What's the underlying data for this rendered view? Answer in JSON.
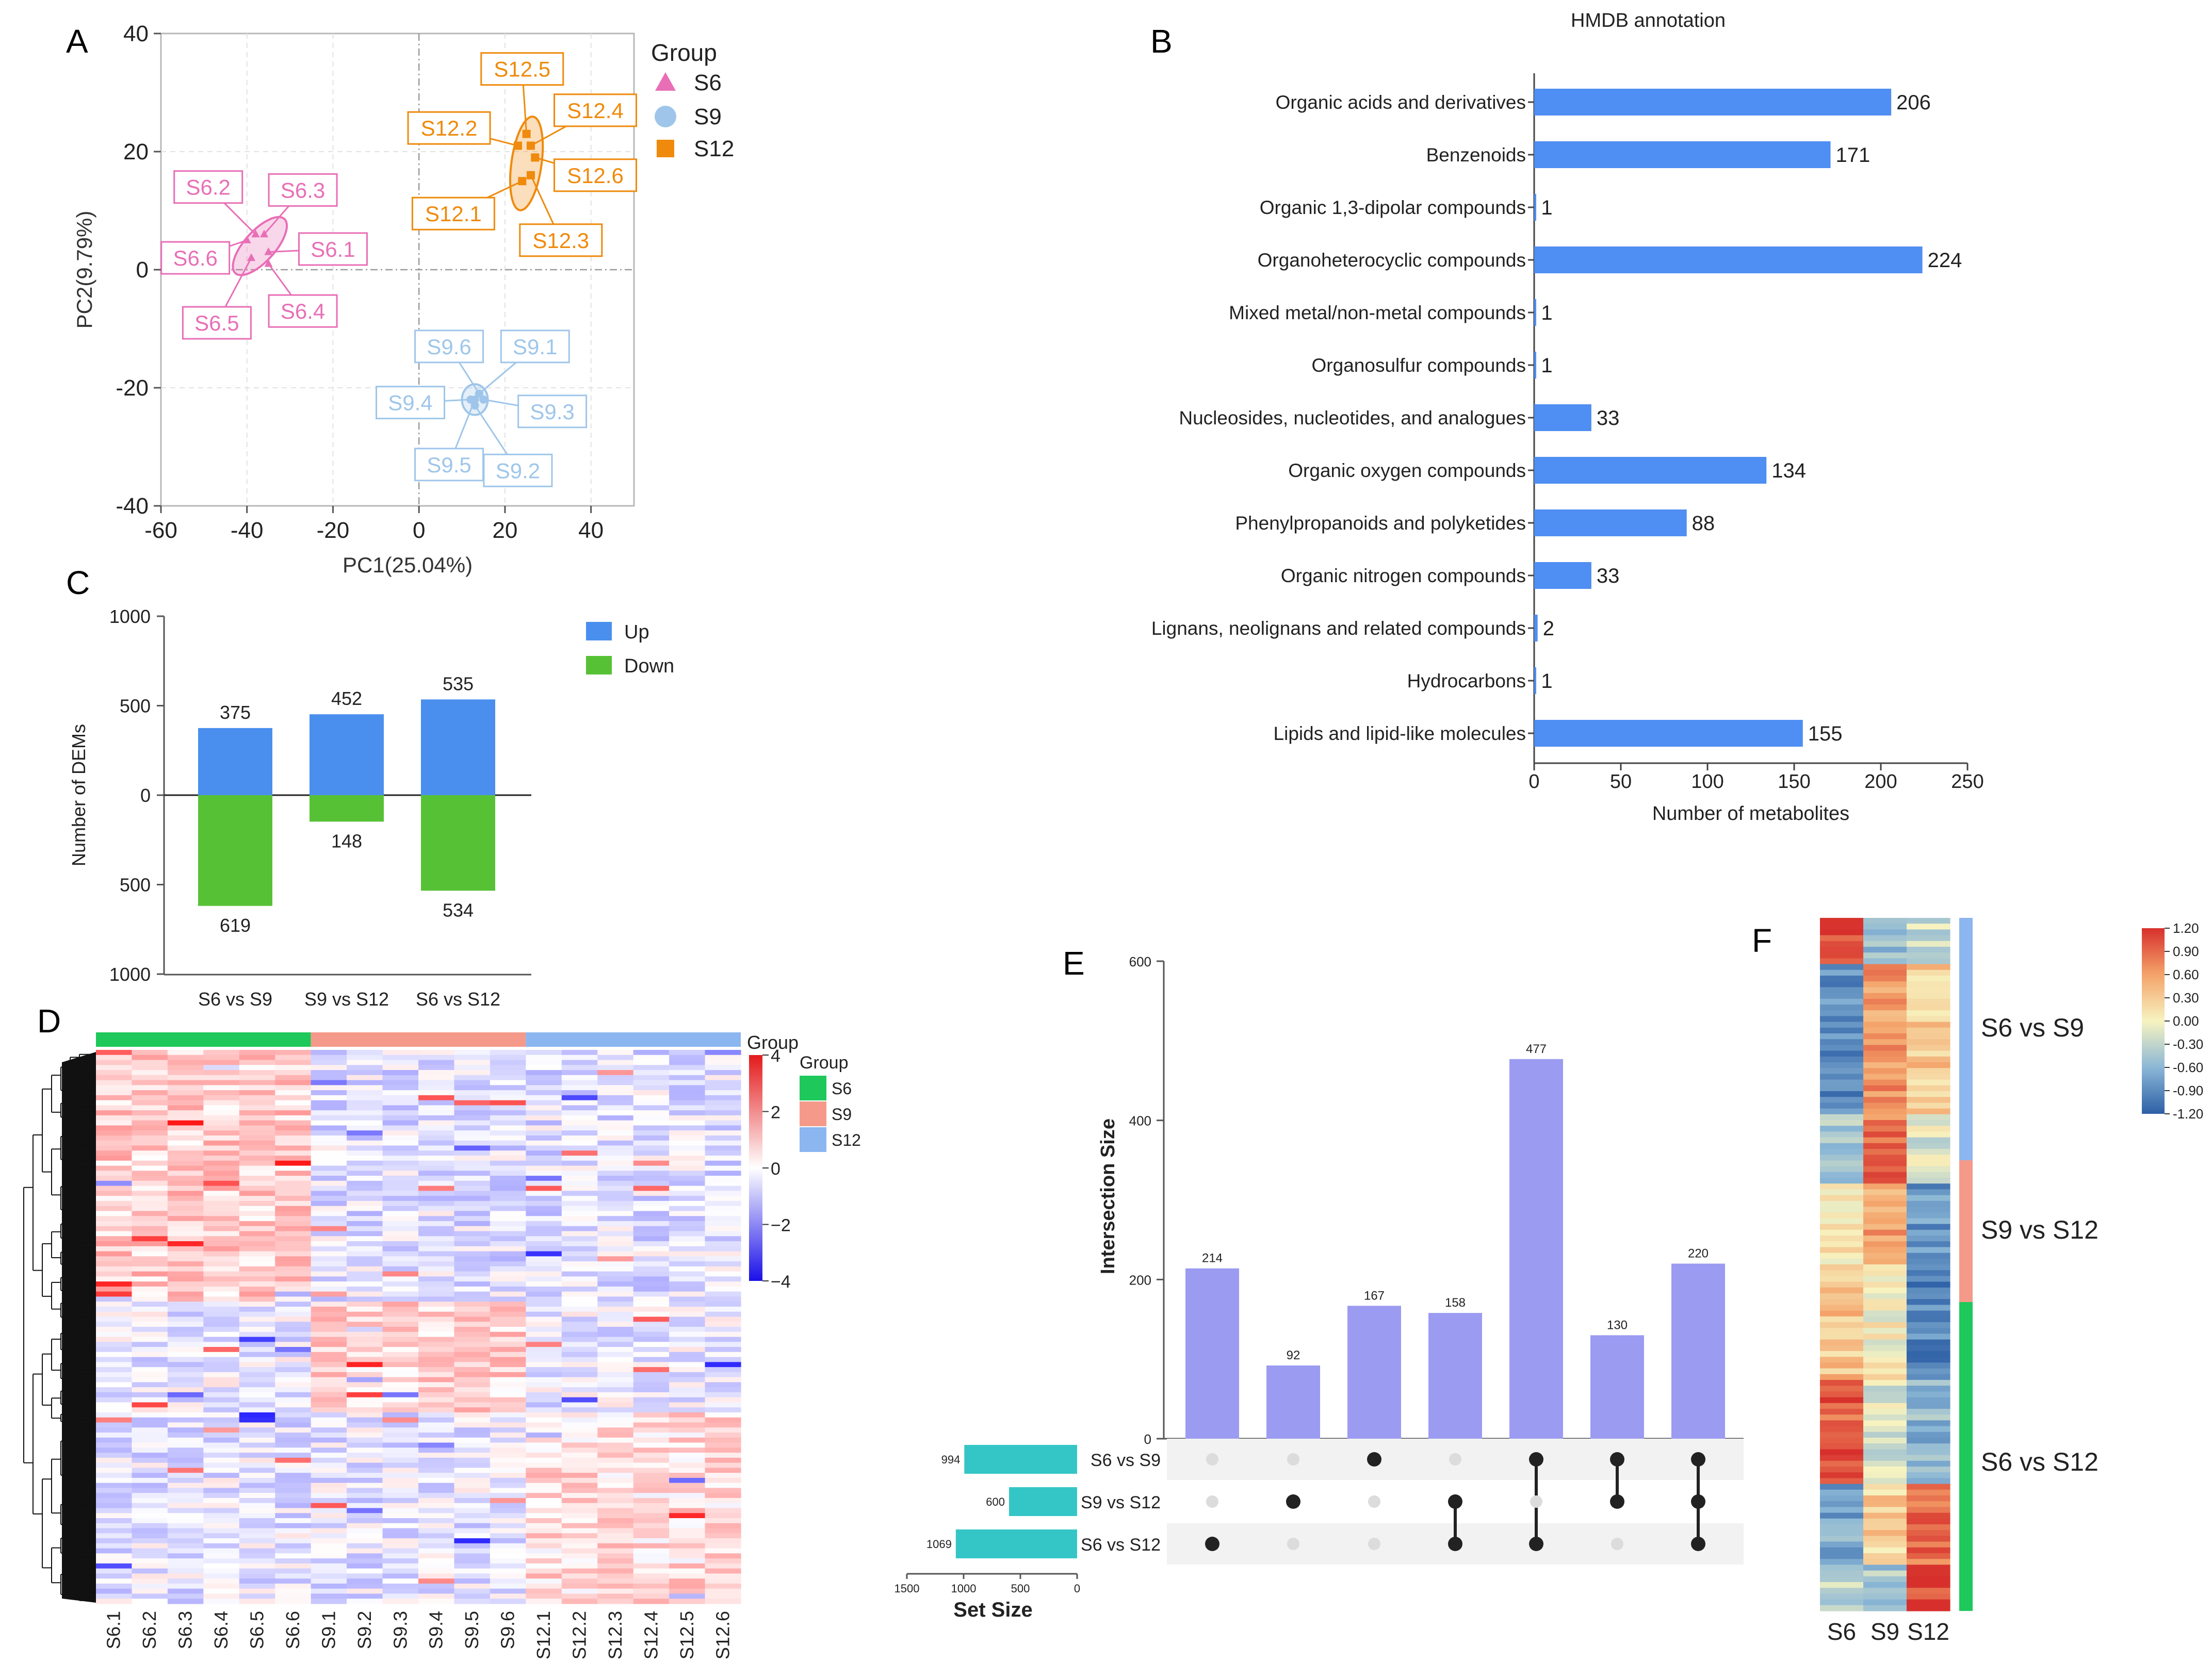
{
  "panels": {
    "A": "A",
    "B": "B",
    "C": "C",
    "D": "D",
    "E": "E",
    "F": "F"
  },
  "colors": {
    "s6": "#e86fb6",
    "s9": "#9fc6ea",
    "s12": "#ef8a0c",
    "bar_blue": "#4f8ef2",
    "up": "#4a8fee",
    "down": "#57c136",
    "upset_bar": "#9b9bf2",
    "set_bar": "#34c6c6",
    "heat_s6": "#1ec85a",
    "heat_s9": "#f59a8a",
    "heat_s12": "#8bb6f0"
  },
  "chart_data": [
    {
      "panel": "A",
      "type": "scatter",
      "title": "",
      "xlabel": "PC1(25.04%)",
      "ylabel": "PC2(9.79%)",
      "xlim": [
        -60,
        50
      ],
      "ylim": [
        -40,
        40
      ],
      "xticks": [
        -60,
        -40,
        -20,
        0,
        20,
        40
      ],
      "yticks": [
        40,
        20,
        0,
        -20,
        -40
      ],
      "legend_title": "Group",
      "legend": [
        {
          "name": "S6",
          "marker": "triangle",
          "color": "#e86fb6"
        },
        {
          "name": "S9",
          "marker": "circle",
          "color": "#9fc6ea"
        },
        {
          "name": "S12",
          "marker": "square",
          "color": "#ef8a0c"
        }
      ],
      "series": [
        {
          "name": "S6",
          "color": "#e86fb6",
          "ellipse": {
            "cx": -37,
            "cy": 4,
            "rx": 8.5,
            "ry": 2.6,
            "angle": -48
          },
          "points": [
            {
              "label": "S6.1",
              "x": -35,
              "y": 3,
              "lx": -20,
              "ly": 3.5
            },
            {
              "label": "S6.2",
              "x": -38,
              "y": 6,
              "lx": -49,
              "ly": 14
            },
            {
              "label": "S6.3",
              "x": -36,
              "y": 6,
              "lx": -27,
              "ly": 13.5
            },
            {
              "label": "S6.4",
              "x": -35,
              "y": 1,
              "lx": -27,
              "ly": -7
            },
            {
              "label": "S6.5",
              "x": -39,
              "y": 2,
              "lx": -47,
              "ly": -9
            },
            {
              "label": "S6.6",
              "x": -40,
              "y": 5,
              "lx": -52,
              "ly": 2
            }
          ]
        },
        {
          "name": "S9",
          "color": "#9fc6ea",
          "ellipse": {
            "cx": 13,
            "cy": -22,
            "rx": 3,
            "ry": 2.6,
            "angle": 0
          },
          "points": [
            {
              "label": "S9.1",
              "x": 14,
              "y": -21,
              "lx": 27,
              "ly": -13
            },
            {
              "label": "S9.2",
              "x": 13,
              "y": -23,
              "lx": 23,
              "ly": -34
            },
            {
              "label": "S9.3",
              "x": 15,
              "y": -22,
              "lx": 31,
              "ly": -24
            },
            {
              "label": "S9.4",
              "x": 12,
              "y": -22,
              "lx": -2,
              "ly": -22.5
            },
            {
              "label": "S9.5",
              "x": 13,
              "y": -22,
              "lx": 7,
              "ly": -33
            },
            {
              "label": "S9.6",
              "x": 14,
              "y": -21,
              "lx": 7,
              "ly": -13
            }
          ]
        },
        {
          "name": "S12",
          "color": "#ef8a0c",
          "ellipse": {
            "cx": 25,
            "cy": 18,
            "rx": 3.5,
            "ry": 8,
            "angle": 8
          },
          "points": [
            {
              "label": "S12.1",
              "x": 24,
              "y": 15,
              "lx": 8,
              "ly": 9.5
            },
            {
              "label": "S12.2",
              "x": 23,
              "y": 21,
              "lx": 7,
              "ly": 24
            },
            {
              "label": "S12.3",
              "x": 26,
              "y": 16,
              "lx": 33,
              "ly": 5
            },
            {
              "label": "S12.4",
              "x": 26,
              "y": 21,
              "lx": 41,
              "ly": 27
            },
            {
              "label": "S12.5",
              "x": 25,
              "y": 23,
              "lx": 24,
              "ly": 34
            },
            {
              "label": "S12.6",
              "x": 27,
              "y": 19,
              "lx": 41,
              "ly": 16
            }
          ]
        }
      ]
    },
    {
      "panel": "B",
      "type": "bar",
      "orientation": "horizontal",
      "title": "HMDB annotation",
      "xlabel": "Number of metabolites",
      "ylabel": "",
      "xlim": [
        0,
        250
      ],
      "xticks": [
        0,
        50,
        100,
        150,
        200,
        250
      ],
      "categories": [
        "Organic acids and derivatives",
        "Benzenoids",
        "Organic 1,3-dipolar compounds",
        "Organoheterocyclic compounds",
        "Mixed metal/non-metal compounds",
        "Organosulfur compounds",
        "Nucleosides, nucleotides, and analogues",
        "Organic oxygen compounds",
        "Phenylpropanoids and polyketides",
        "Organic nitrogen compounds",
        "Lignans, neolignans and related compounds",
        "Hydrocarbons",
        "Lipids and lipid-like molecules"
      ],
      "values": [
        206,
        171,
        1,
        224,
        1,
        1,
        33,
        134,
        88,
        33,
        2,
        1,
        155
      ]
    },
    {
      "panel": "C",
      "type": "bar",
      "title": "",
      "xlabel": "",
      "ylabel": "Number of DEMs",
      "ylim": [
        -1000,
        1000
      ],
      "yticks": [
        1000,
        500,
        0,
        500,
        1000
      ],
      "ytick_values": [
        1000,
        500,
        0,
        -500,
        -1000
      ],
      "categories": [
        "S6 vs S9",
        "S9 vs S12",
        "S6 vs S12"
      ],
      "series": [
        {
          "name": "Up",
          "color": "#4a8fee",
          "values": [
            375,
            452,
            535
          ]
        },
        {
          "name": "Down",
          "color": "#57c136",
          "values": [
            619,
            148,
            534
          ]
        }
      ]
    },
    {
      "panel": "D",
      "type": "heatmap",
      "columns": [
        "S6.1",
        "S6.2",
        "S6.3",
        "S6.4",
        "S6.5",
        "S6.6",
        "S9.1",
        "S9.2",
        "S9.3",
        "S9.4",
        "S9.5",
        "S9.6",
        "S12.1",
        "S12.2",
        "S12.3",
        "S12.4",
        "S12.5",
        "S12.6"
      ],
      "annotation_title": "Group",
      "legend_title": "Group",
      "groups": [
        "S6",
        "S9",
        "S12"
      ],
      "colorbar_ticks": [
        4,
        2,
        0,
        -2,
        -4
      ],
      "colorbar_labels": [
        "4",
        "2",
        "0",
        "−2",
        "−4"
      ],
      "range": [
        -4,
        4
      ]
    },
    {
      "panel": "E",
      "type": "bar",
      "subtype": "upset",
      "ylabel": "Intersection Size",
      "ylim": [
        0,
        600
      ],
      "yticks": [
        0,
        200,
        400,
        600
      ],
      "intersection_sizes": [
        214,
        92,
        167,
        158,
        477,
        130,
        220
      ],
      "intersections": [
        [
          2
        ],
        [
          1
        ],
        [
          0
        ],
        [
          1,
          2
        ],
        [
          0,
          2
        ],
        [
          0,
          1
        ],
        [
          0,
          1,
          2
        ]
      ],
      "sets": [
        "S6 vs S9",
        "S9 vs S12",
        "S6 vs S12"
      ],
      "set_sizes": [
        994,
        600,
        1069
      ],
      "set_size_label": "Set Size",
      "set_size_ticks": [
        1500,
        1000,
        500,
        0
      ]
    },
    {
      "panel": "F",
      "type": "heatmap",
      "columns": [
        "S6",
        "S9",
        "S12"
      ],
      "row_groups": [
        "S6 vs S9",
        "S9 vs S12",
        "S6 vs S12"
      ],
      "colorbar_ticks": [
        "1.20",
        "0.90",
        "0.60",
        "0.30",
        "0.00",
        "-0.30",
        "-0.60",
        "-0.90",
        "-1.20"
      ],
      "range": [
        -1.2,
        1.2
      ]
    }
  ]
}
